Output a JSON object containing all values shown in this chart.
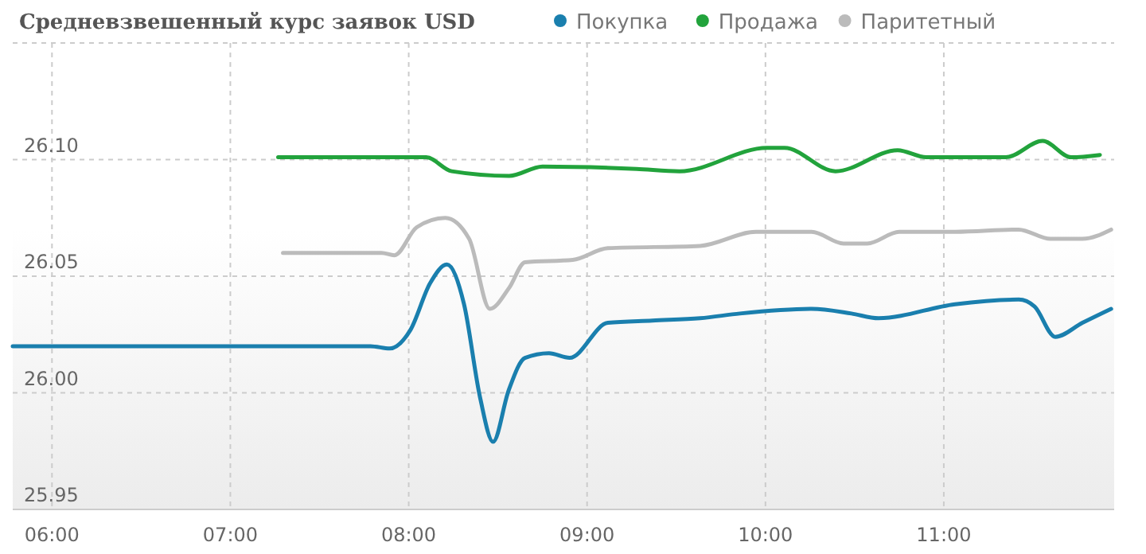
{
  "chart_data": {
    "type": "line",
    "title": "Средневзвешенный курс заявок USD",
    "legend": "top",
    "grid": true,
    "marker": "none",
    "line_style": "solid",
    "xlim": [
      5.78,
      11.955
    ],
    "xticks": [
      {
        "value": 6,
        "label": "06:00"
      },
      {
        "value": 7,
        "label": "07:00"
      },
      {
        "value": 8,
        "label": "08:00"
      },
      {
        "value": 9,
        "label": "09:00"
      },
      {
        "value": 10,
        "label": "10:00"
      },
      {
        "value": 11,
        "label": "11:00"
      }
    ],
    "ylim": [
      25.95,
      26.15
    ],
    "yticks": [
      {
        "value": 25.95,
        "label": "25.95"
      },
      {
        "value": 26.0,
        "label": "26.00"
      },
      {
        "value": 26.05,
        "label": "26.05"
      },
      {
        "value": 26.1,
        "label": "26.10"
      }
    ],
    "series": [
      {
        "name": "Покупка",
        "color": "#1a7fae",
        "x": [
          5.78,
          7.786,
          7.893,
          8.01,
          8.12,
          8.214,
          8.31,
          8.4,
          8.473,
          8.56,
          8.652,
          8.786,
          8.902,
          9.116,
          9.366,
          9.634,
          9.857,
          10.259,
          10.482,
          10.634,
          11.063,
          11.42,
          11.509,
          11.625,
          11.777,
          11.938
        ],
        "values": [
          26.02,
          26.02,
          26.019,
          26.027,
          26.047,
          26.055,
          26.038,
          25.998,
          25.979,
          26.001,
          26.015,
          26.017,
          26.015,
          26.03,
          26.031,
          26.032,
          26.034,
          26.036,
          26.034,
          26.032,
          26.038,
          26.04,
          26.037,
          26.024,
          26.03,
          26.036
        ]
      },
      {
        "name": "Продажа",
        "color": "#22a33c",
        "x": [
          7.268,
          8.098,
          8.241,
          8.563,
          8.75,
          9.277,
          9.518,
          10.009,
          10.107,
          10.393,
          10.741,
          10.902,
          11.348,
          11.554,
          11.714,
          11.875
        ],
        "values": [
          26.101,
          26.101,
          26.095,
          26.093,
          26.097,
          26.096,
          26.095,
          26.105,
          26.105,
          26.095,
          26.104,
          26.101,
          26.101,
          26.108,
          26.101,
          26.102
        ]
      },
      {
        "name": "Паритетный",
        "color": "#bbbbbb",
        "x": [
          7.295,
          7.848,
          7.92,
          8.045,
          8.205,
          8.339,
          8.455,
          8.563,
          8.652,
          8.92,
          9.116,
          9.634,
          9.946,
          10.259,
          10.438,
          10.571,
          10.75,
          11.063,
          11.42,
          11.598,
          11.777,
          11.938
        ],
        "values": [
          26.06,
          26.06,
          26.059,
          26.071,
          26.075,
          26.066,
          26.036,
          26.045,
          26.056,
          26.057,
          26.062,
          26.063,
          26.069,
          26.069,
          26.064,
          26.064,
          26.069,
          26.069,
          26.07,
          26.066,
          26.066,
          26.07
        ]
      }
    ]
  }
}
